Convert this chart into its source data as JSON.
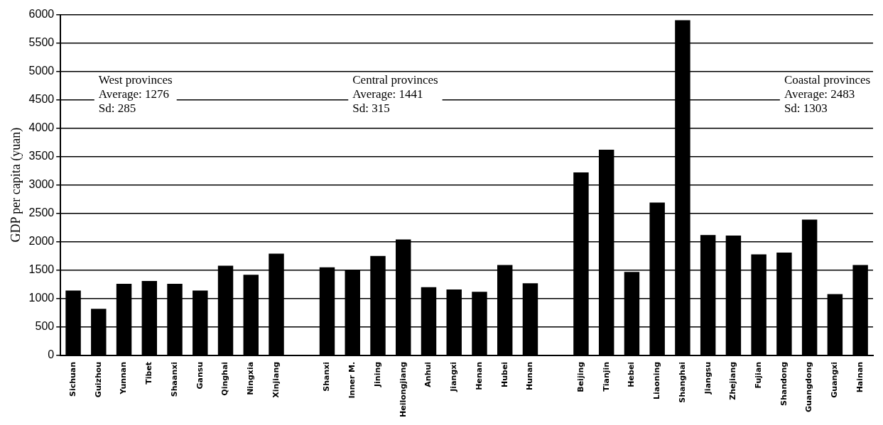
{
  "chart_data": {
    "type": "bar",
    "ylabel": "GDP per capita (yuan)",
    "categories": [
      "Sichuan",
      "Guizhou",
      "Yunnan",
      "Tibet",
      "Shaanxi",
      "Gansu",
      "Qinghai",
      "Ningxia",
      "Xinjiang",
      null,
      "Shanxi",
      "Inner M.",
      "Jining",
      "Heilongjiang",
      "Anhui",
      "Jiangxi",
      "Henan",
      "Hubei",
      "Hunan",
      null,
      "Beijing",
      "Tianjin",
      "Hebei",
      "Liaoning",
      "Shanghai",
      "Jiangsu",
      "Zhejiang",
      "Fujian",
      "Shandong",
      "Guangdong",
      "Guangxi",
      "Hainan"
    ],
    "values": [
      1140,
      820,
      1260,
      1310,
      1260,
      1140,
      1580,
      1420,
      1790,
      null,
      1550,
      1510,
      1750,
      2040,
      1200,
      1160,
      1120,
      1590,
      1270,
      null,
      3220,
      3620,
      1470,
      2690,
      5900,
      2120,
      2110,
      1780,
      1810,
      2390,
      1080,
      1590
    ],
    "color": "#000000",
    "ylim": [
      0,
      6000
    ],
    "yticks": [
      0,
      500,
      1000,
      1500,
      2000,
      2500,
      3000,
      3500,
      4000,
      4500,
      5000,
      5500,
      6000
    ],
    "grid": "y",
    "annotations": [
      "West provinces\nAverage: 1276\nSd: 285",
      "Central provinces\nAverage: 1441\nSd: 315",
      "Coastal provinces\nAverage: 2483\nSd: 1303"
    ]
  }
}
